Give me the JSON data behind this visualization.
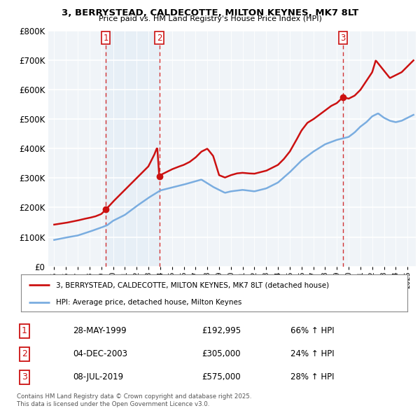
{
  "title": "3, BERRYSTEAD, CALDECOTTE, MILTON KEYNES, MK7 8LT",
  "subtitle": "Price paid vs. HM Land Registry's House Price Index (HPI)",
  "legend_line1": "3, BERRYSTEAD, CALDECOTTE, MILTON KEYNES, MK7 8LT (detached house)",
  "legend_line2": "HPI: Average price, detached house, Milton Keynes",
  "footer": "Contains HM Land Registry data © Crown copyright and database right 2025.\nThis data is licensed under the Open Government Licence v3.0.",
  "transactions": [
    {
      "num": 1,
      "date": "28-MAY-1999",
      "price": "£192,995",
      "change": "66% ↑ HPI",
      "year": 1999.38
    },
    {
      "num": 2,
      "date": "04-DEC-2003",
      "price": "£305,000",
      "change": "24% ↑ HPI",
      "year": 2003.92
    },
    {
      "num": 3,
      "date": "08-JUL-2019",
      "price": "£575,000",
      "change": "28% ↑ HPI",
      "year": 2019.52
    }
  ],
  "sale_prices": [
    192995,
    305000,
    575000
  ],
  "sale_years": [
    1999.38,
    2003.92,
    2019.52
  ],
  "hpi_color": "#7aade0",
  "price_color": "#cc1111",
  "vline_color": "#cc1111",
  "shade_color": "#d8e8f5",
  "bg_color": "#f0f4f8",
  "grid_color": "#ffffff",
  "ylim": [
    0,
    800000
  ],
  "xlim_start": 1994.5,
  "xlim_end": 2025.7,
  "ytick_labels": [
    "£0",
    "£100K",
    "£200K",
    "£300K",
    "£400K",
    "£500K",
    "£600K",
    "£700K",
    "£800K"
  ],
  "ytick_values": [
    0,
    100000,
    200000,
    300000,
    400000,
    500000,
    600000,
    700000,
    800000
  ]
}
